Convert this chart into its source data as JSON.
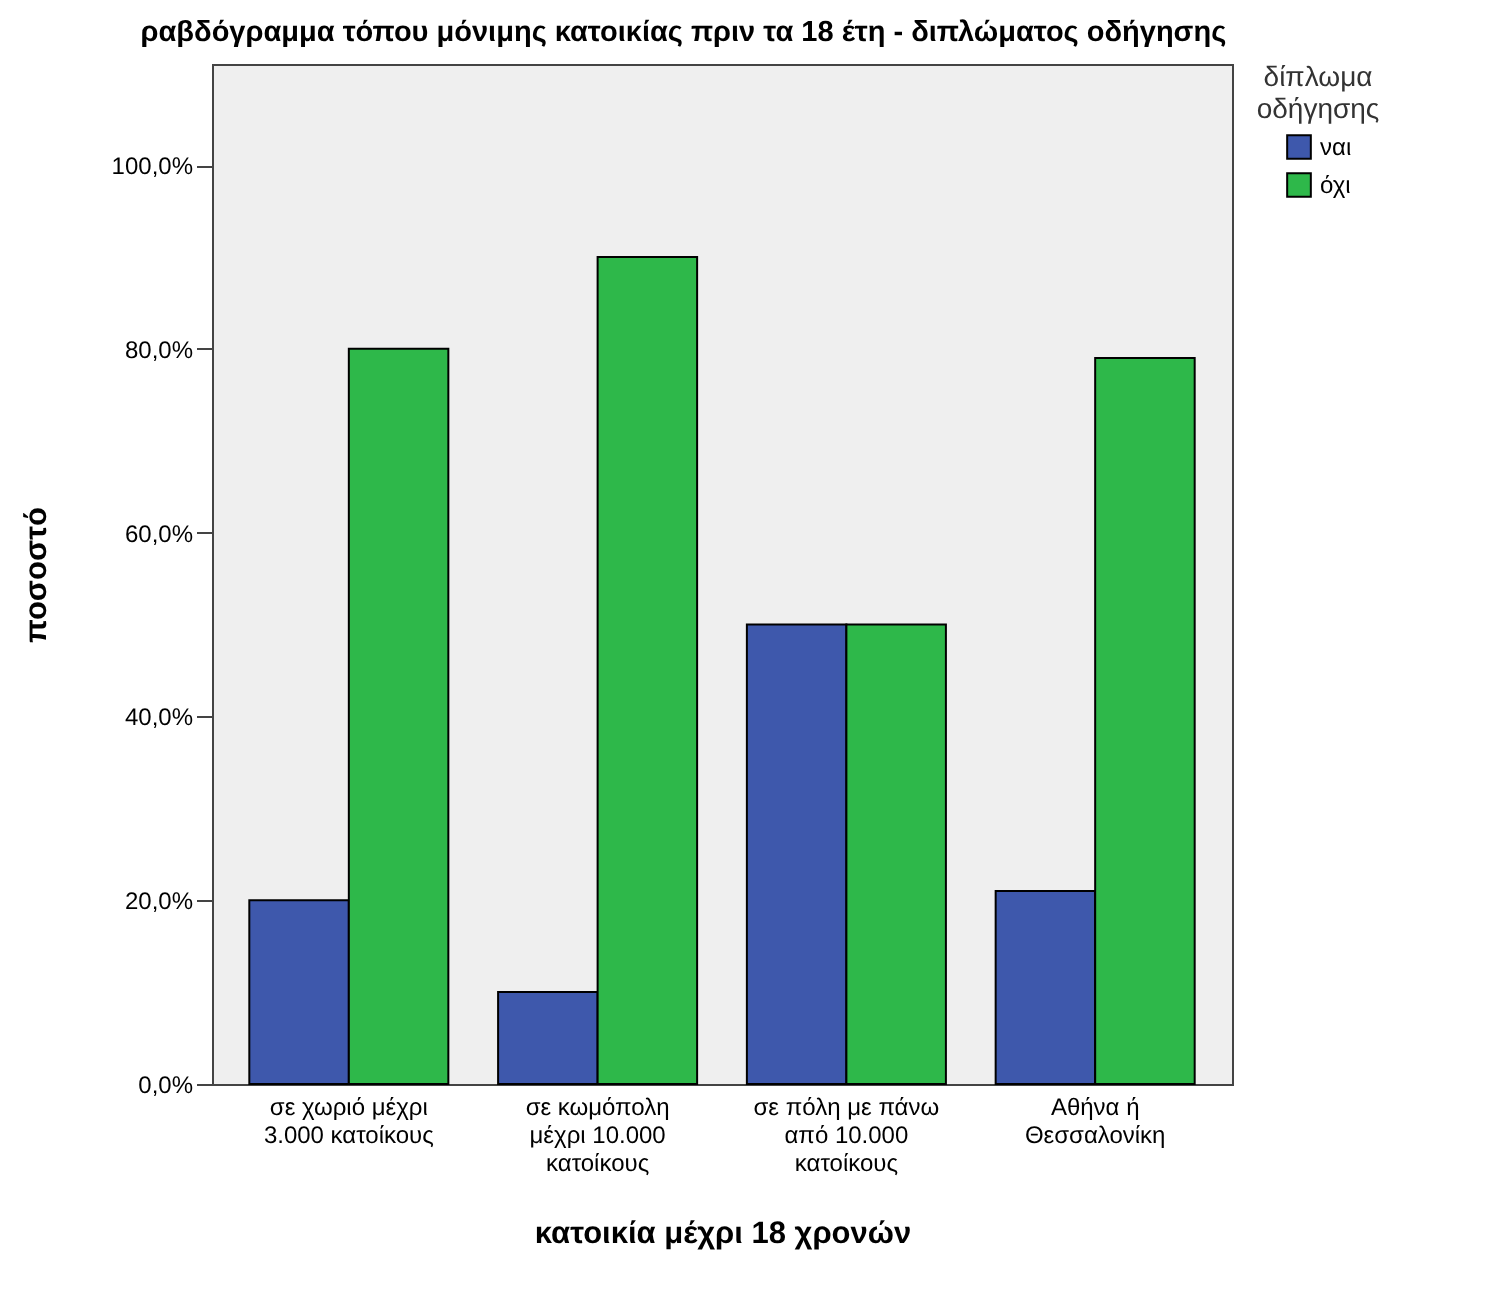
{
  "chart_data": {
    "type": "bar",
    "title": "ραβδόγραμμα τόπου μόνιμης κατοικίας πριν τα 18 έτη - διπλώματος οδήγησης",
    "xlabel": "κατοικία μέχρι 18 χρονών",
    "ylabel": "ποσοστό",
    "legend_title": "δίπλωμα οδήγησης",
    "categories": [
      "σε χωριό μέχρι 3.000 κατοίκους",
      "σε κωμόπολη μέχρι 10.000 κατοίκους",
      "σε πόλη με πάνω από 10.000 κατοίκους",
      "Αθήνα ή Θεσσαλονίκη"
    ],
    "series": [
      {
        "name": "ναι",
        "color": "#3e58ac",
        "values": [
          20,
          10,
          50,
          21
        ]
      },
      {
        "name": "όχι",
        "color": "#2eb84a",
        "values": [
          80,
          90,
          50,
          79
        ]
      }
    ],
    "ylim": [
      0,
      111
    ],
    "yticks": [
      {
        "value": 0,
        "label": "0,0%"
      },
      {
        "value": 20,
        "label": "20,0%"
      },
      {
        "value": 40,
        "label": "40,0%"
      },
      {
        "value": 60,
        "label": "60,0%"
      },
      {
        "value": 80,
        "label": "80,0%"
      },
      {
        "value": 100,
        "label": "100,0%"
      }
    ],
    "grid": false,
    "legend": "top right"
  }
}
